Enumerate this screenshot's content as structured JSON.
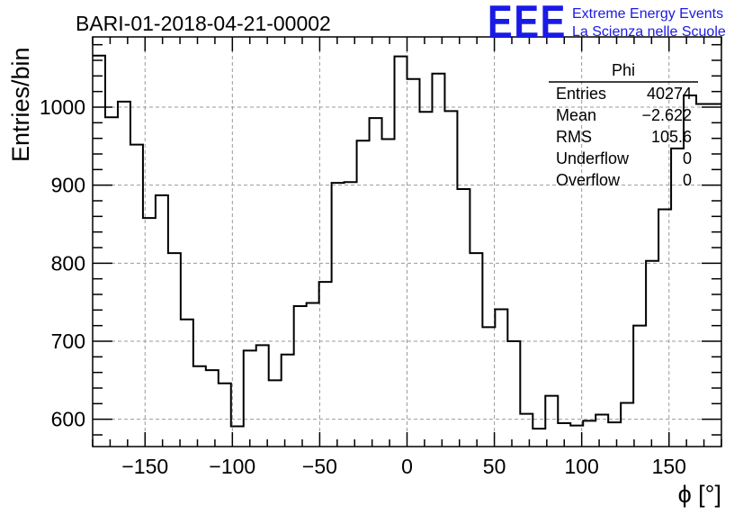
{
  "title": "BARI-01-2018-04-21-00002",
  "logo": {
    "mark": "EEE",
    "line1": "Extreme Energy Events",
    "line2": "La Scienza nelle Scuole",
    "color": "#1a1ae6"
  },
  "stats": {
    "name": "Phi",
    "rows": [
      {
        "label": "Entries",
        "value": "40274"
      },
      {
        "label": "Mean",
        "value": "−2.622"
      },
      {
        "label": "RMS",
        "value": "105.6"
      },
      {
        "label": "Underflow",
        "value": "0"
      },
      {
        "label": "Overflow",
        "value": "0"
      }
    ]
  },
  "chart_data": {
    "type": "bar",
    "histogram": true,
    "xlabel": "ϕ [°]",
    "ylabel": "Entries/bin",
    "xlim": [
      -180,
      180
    ],
    "ylim": [
      565,
      1090
    ],
    "bin_width": 7.2,
    "xticks": [
      -150,
      -100,
      -50,
      0,
      50,
      100,
      150
    ],
    "xtick_labels": [
      "−150",
      "−100",
      "−50",
      "0",
      "50",
      "100",
      "150"
    ],
    "yticks": [
      600,
      700,
      800,
      900,
      1000
    ],
    "ytick_labels": [
      "600",
      "700",
      "800",
      "900",
      "1000"
    ],
    "grid": true,
    "values": [
      1066,
      987,
      1007,
      952,
      858,
      887,
      813,
      728,
      668,
      663,
      646,
      591,
      688,
      695,
      650,
      683,
      745,
      749,
      776,
      903,
      904,
      957,
      986,
      959,
      1065,
      1036,
      994,
      1043,
      995,
      895,
      813,
      718,
      741,
      700,
      607,
      588,
      630,
      595,
      592,
      598,
      606,
      596,
      621,
      720,
      803,
      869,
      947,
      1015,
      1004,
      1004
    ]
  }
}
